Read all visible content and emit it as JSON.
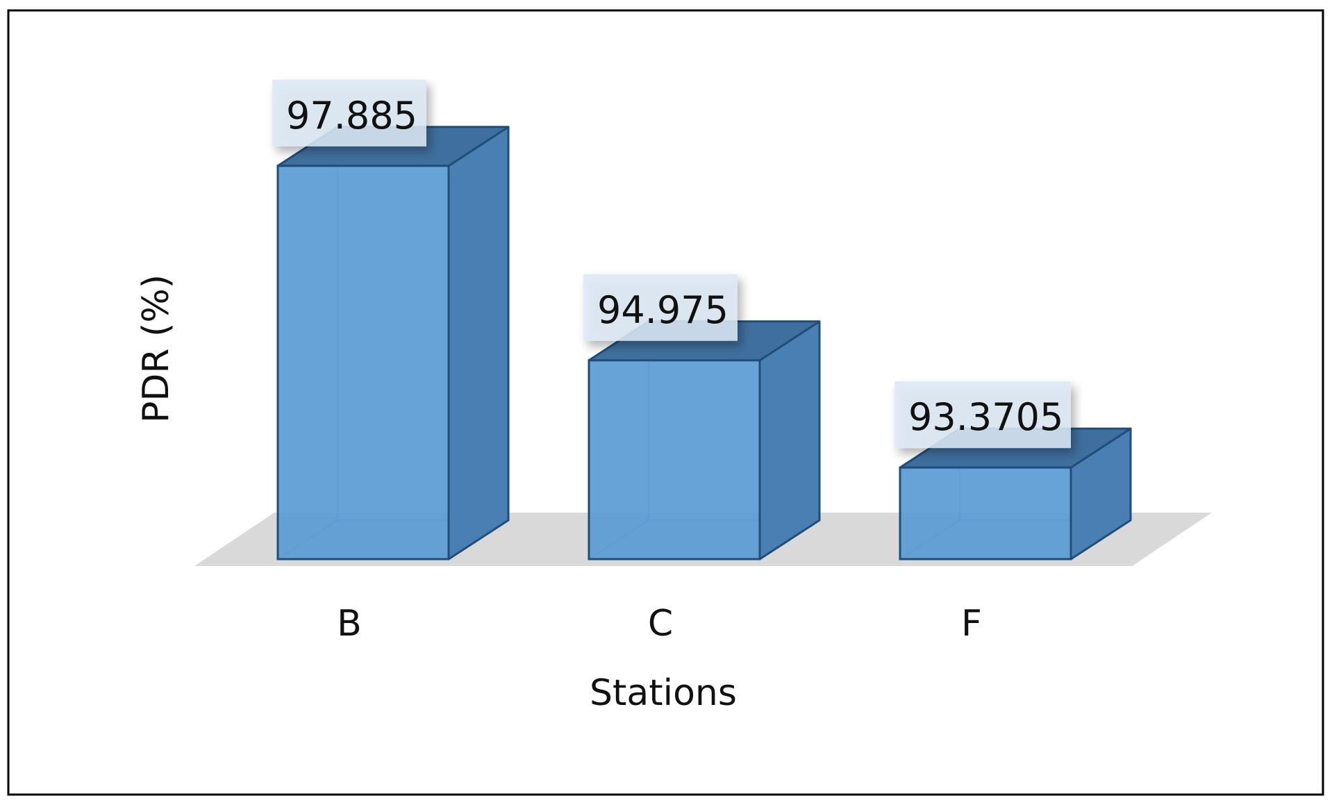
{
  "chart_data": {
    "type": "bar",
    "style": "3d-column",
    "title": "",
    "xlabel": "Stations",
    "ylabel": "PDR (%)",
    "categories": [
      "B",
      "C",
      "F"
    ],
    "values": [
      97.885,
      94.975,
      93.3705
    ],
    "data_labels": [
      "97.885",
      "94.975",
      "93.3705"
    ],
    "ylim": [
      92,
      98.6
    ],
    "grid": false,
    "legend": "none",
    "colors": {
      "bar_front": "#5b9bd5",
      "bar_side": "#4a7fb3",
      "bar_top": "#3f6f9e",
      "bar_edge": "#1f4e79",
      "floor": "#d9d9d9",
      "label_box": "#dce9f5",
      "frame": "#000000"
    }
  }
}
